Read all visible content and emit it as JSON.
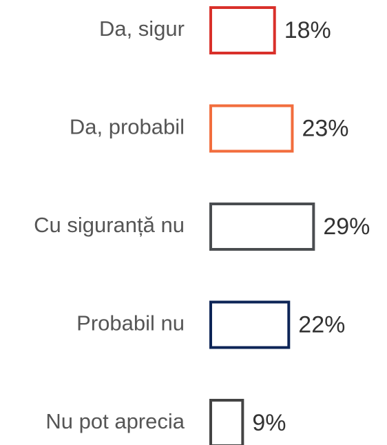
{
  "chart_data": {
    "type": "bar",
    "categories": [
      "Da, sigur",
      "Da, probabil",
      "Cu siguranță nu",
      "Probabil nu",
      "Nu pot aprecia"
    ],
    "values": [
      18,
      23,
      29,
      22,
      9
    ],
    "value_labels": [
      "18%",
      "23%",
      "29%",
      "22%",
      "9%"
    ],
    "colors": [
      "#d9302a",
      "#f26d3d",
      "#4a4d50",
      "#0d2557",
      "#444444"
    ]
  }
}
